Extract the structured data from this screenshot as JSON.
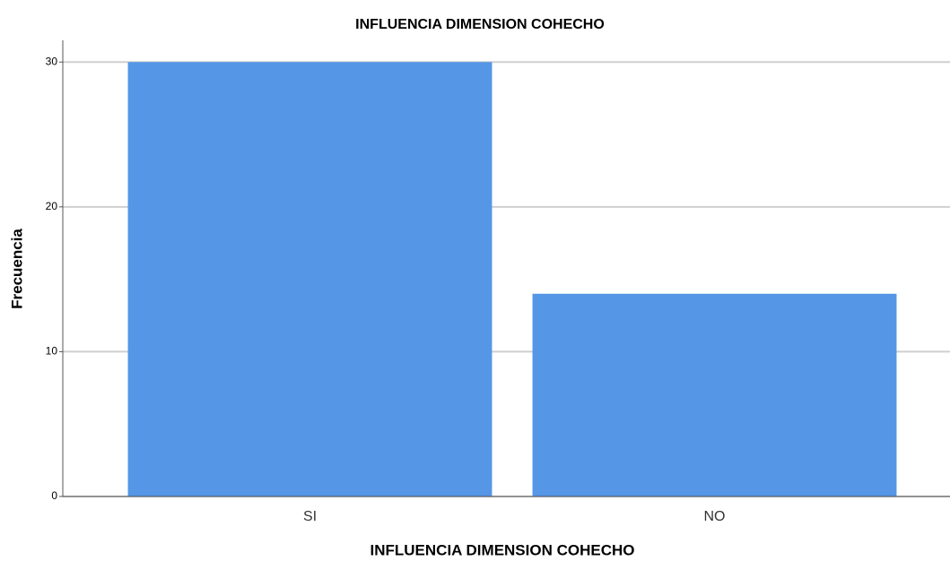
{
  "chart_data": {
    "type": "bar",
    "title": "INFLUENCIA DIMENSION COHECHO",
    "x_label": "INFLUENCIA DIMENSION COHECHO",
    "y_label": "Frecuencia",
    "categories": [
      "SI",
      "NO"
    ],
    "values": [
      30,
      14
    ],
    "color": "#5596e6",
    "ylim": [
      0,
      31.5
    ],
    "yticks": [
      0,
      10,
      20,
      30
    ],
    "grid": true
  }
}
